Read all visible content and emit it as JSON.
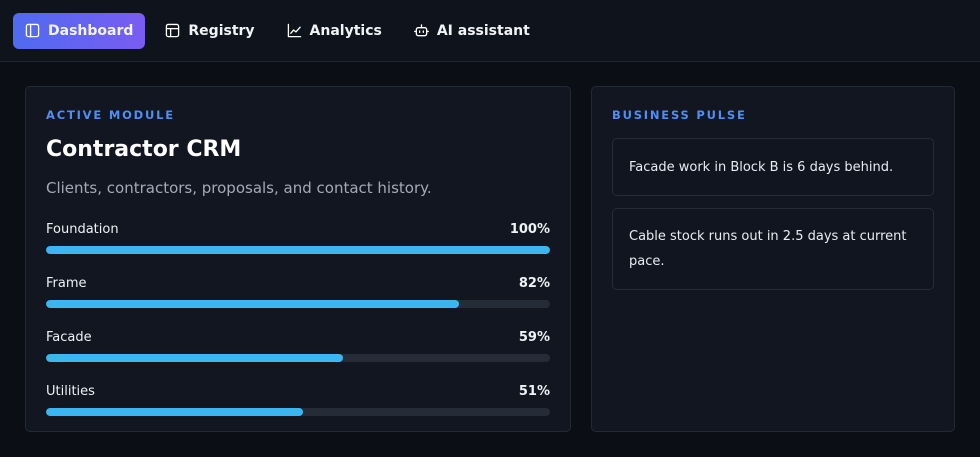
{
  "nav": {
    "items": [
      {
        "label": "Dashboard",
        "icon": "sidebar-panel-icon",
        "active": true
      },
      {
        "label": "Registry",
        "icon": "table-icon",
        "active": false
      },
      {
        "label": "Analytics",
        "icon": "line-chart-icon",
        "active": false
      },
      {
        "label": "AI assistant",
        "icon": "bot-icon",
        "active": false
      }
    ]
  },
  "module": {
    "eyebrow": "ACTIVE MODULE",
    "title": "Contractor CRM",
    "subtitle": "Clients, contractors, proposals, and contact history.",
    "progress": [
      {
        "label": "Foundation",
        "value": 100,
        "display": "100%"
      },
      {
        "label": "Frame",
        "value": 82,
        "display": "82%"
      },
      {
        "label": "Facade",
        "value": 59,
        "display": "59%"
      },
      {
        "label": "Utilities",
        "value": 51,
        "display": "51%"
      }
    ]
  },
  "pulse": {
    "eyebrow": "BUSINESS PULSE",
    "items": [
      "Facade work in Block B is 6 days behind.",
      "Cable stock runs out in 2.5 days at current pace."
    ]
  },
  "colors": {
    "accent": "#4f8ef7",
    "progress_fill": "#3cb6f0",
    "active_gradient_start": "#4f6bf0",
    "active_gradient_end": "#7a5cf2"
  }
}
